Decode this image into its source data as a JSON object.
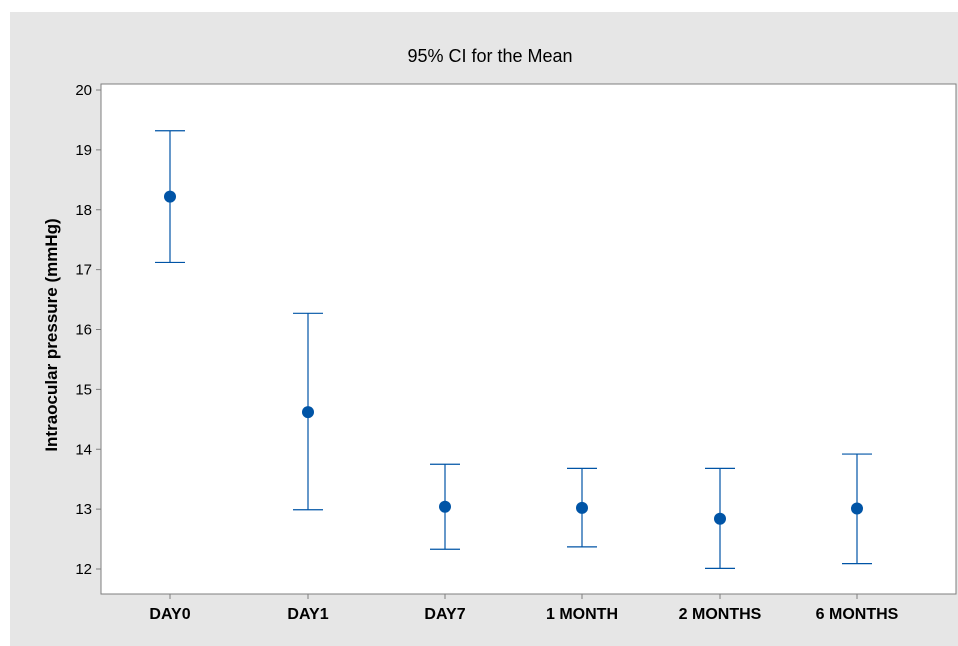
{
  "colors": {
    "outer_bg": "#e6e6e6",
    "plot_bg": "#ffffff",
    "series": "#0054a6",
    "axis": "#7f7f7f"
  },
  "chart_data": {
    "type": "interval",
    "title": "95% CI for the Mean",
    "xlabel": "",
    "ylabel": "Intraocular pressure (mmHg)",
    "ylim": [
      11.6,
      20.0
    ],
    "yticks": [
      12,
      13,
      14,
      15,
      16,
      17,
      18,
      19,
      20
    ],
    "categories": [
      "DAY0",
      "DAY1",
      "DAY7",
      "1 MONTH",
      "2 MONTHS",
      "6 MONTHS"
    ],
    "mean": [
      18.22,
      14.62,
      13.04,
      13.02,
      12.84,
      13.01
    ],
    "lower": [
      17.12,
      12.99,
      12.33,
      12.37,
      12.01,
      12.09
    ],
    "upper": [
      19.32,
      16.27,
      13.75,
      13.68,
      13.68,
      13.92
    ],
    "grid": false,
    "legend": "none"
  }
}
